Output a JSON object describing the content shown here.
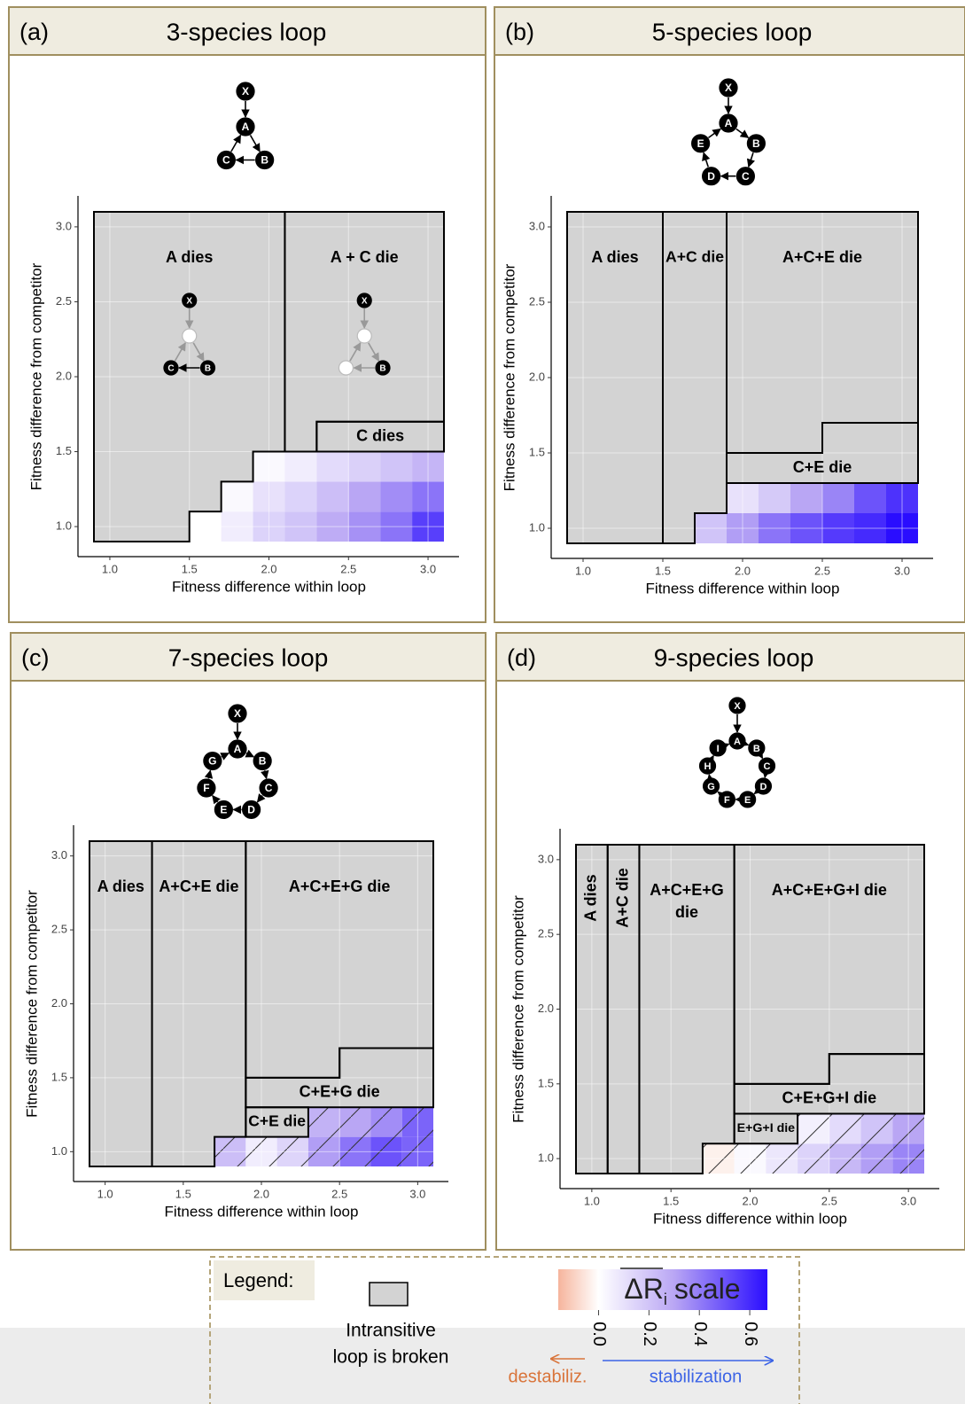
{
  "chart_data": [
    {
      "type": "heatmap",
      "panel_label": "(a)",
      "title": "3-species loop",
      "xlabel": "Fitness difference within loop",
      "ylabel": "Fitness difference from competitor",
      "network": {
        "competitor": "X",
        "loop": [
          "A",
          "B",
          "C"
        ]
      },
      "xlim": [
        0.9,
        3.1
      ],
      "ylim": [
        0.9,
        3.1
      ],
      "xticks": [
        {
          "value": 1,
          "label": "1.0"
        },
        1.5,
        {
          "value": 2,
          "label": "2.0"
        },
        2.5,
        {
          "value": 3,
          "label": "3.0"
        }
      ],
      "yticks": [
        {
          "value": 1,
          "label": "1.0"
        },
        1.5,
        {
          "value": 2,
          "label": "2.0"
        },
        2.5,
        {
          "value": 3,
          "label": "3.0"
        }
      ],
      "grid": true,
      "hatched": false,
      "cell_size": 0.2,
      "regions": [
        {
          "label": "A dies",
          "x": [
            0.9,
            1.5,
            1.5,
            1.7,
            1.7,
            1.9,
            1.9,
            2.1,
            2.1,
            0.9
          ],
          "y": [
            0.9,
            0.9,
            1.1,
            1.1,
            1.3,
            1.3,
            1.5,
            1.5,
            3.1,
            3.1
          ],
          "inset": [
            "X",
            "B",
            "C"
          ]
        },
        {
          "label": "A + C die",
          "x": [
            2.1,
            2.3,
            2.3,
            3.1,
            3.1,
            2.1
          ],
          "y": [
            1.5,
            1.5,
            1.7,
            1.7,
            3.1,
            3.1
          ],
          "inset": [
            "X",
            "B"
          ]
        },
        {
          "label": "C dies",
          "x": [
            2.3,
            3.1,
            3.1,
            2.3
          ],
          "y": [
            1.5,
            1.5,
            1.7,
            1.7
          ]
        }
      ],
      "cells": {
        "x": [
          1.6,
          1.8,
          2.0,
          2.2,
          2.4,
          2.6,
          2.8,
          3.0,
          1.8,
          2.0,
          2.2,
          2.4,
          2.6,
          2.8,
          3.0,
          2.0,
          2.2,
          2.4,
          2.6,
          2.8,
          3.0
        ],
        "y": [
          1.0,
          1.0,
          1.0,
          1.0,
          1.0,
          1.0,
          1.0,
          1.0,
          1.2,
          1.2,
          1.2,
          1.2,
          1.2,
          1.2,
          1.2,
          1.4,
          1.4,
          1.4,
          1.4,
          1.4,
          1.4
        ],
        "values": [
          0.0,
          0.06,
          0.15,
          0.2,
          0.28,
          0.35,
          0.42,
          0.55,
          0.02,
          0.1,
          0.15,
          0.22,
          0.3,
          0.36,
          0.42,
          0.02,
          0.06,
          0.12,
          0.16,
          0.2,
          0.25
        ]
      }
    },
    {
      "type": "heatmap",
      "panel_label": "(b)",
      "title": "5-species loop",
      "xlabel": "Fitness difference within loop",
      "ylabel": "Fitness difference from competitor",
      "network": {
        "competitor": "X",
        "loop": [
          "A",
          "B",
          "C",
          "D",
          "E"
        ]
      },
      "xlim": [
        0.9,
        3.1
      ],
      "ylim": [
        0.9,
        3.1
      ],
      "xticks": [
        {
          "value": 1,
          "label": "1.0"
        },
        1.5,
        {
          "value": 2,
          "label": "2.0"
        },
        2.5,
        {
          "value": 3,
          "label": "3.0"
        }
      ],
      "yticks": [
        {
          "value": 1,
          "label": "1.0"
        },
        1.5,
        {
          "value": 2,
          "label": "2.0"
        },
        2.5,
        {
          "value": 3,
          "label": "3.0"
        }
      ],
      "grid": true,
      "hatched": false,
      "cell_size": 0.2,
      "regions": [
        {
          "label": "A dies",
          "x": [
            0.9,
            1.5,
            1.5,
            0.9
          ],
          "y": [
            0.9,
            0.9,
            3.1,
            3.1
          ]
        },
        {
          "label": "A+C die",
          "x": [
            1.5,
            1.7,
            1.7,
            1.9,
            1.9,
            1.5
          ],
          "y": [
            0.9,
            0.9,
            1.1,
            1.1,
            3.1,
            3.1
          ]
        },
        {
          "label": "A+C+E die",
          "x": [
            1.9,
            2.5,
            2.5,
            3.1,
            3.1,
            1.9
          ],
          "y": [
            1.5,
            1.5,
            1.7,
            1.7,
            3.1,
            3.1
          ]
        },
        {
          "label": "C+E die",
          "x": [
            1.9,
            3.1,
            3.1,
            2.5,
            2.5,
            1.9
          ],
          "y": [
            1.3,
            1.3,
            1.7,
            1.7,
            1.5,
            1.5
          ]
        }
      ],
      "cells": {
        "x": [
          1.8,
          2.0,
          2.2,
          2.4,
          2.6,
          2.8,
          3.0,
          2.0,
          2.2,
          2.4,
          2.6,
          2.8,
          3.0
        ],
        "y": [
          1.0,
          1.0,
          1.0,
          1.0,
          1.0,
          1.0,
          1.0,
          1.2,
          1.2,
          1.2,
          1.2,
          1.2,
          1.2
        ],
        "values": [
          0.2,
          0.32,
          0.42,
          0.5,
          0.56,
          0.6,
          0.67,
          0.1,
          0.18,
          0.3,
          0.38,
          0.5,
          0.58
        ]
      }
    },
    {
      "type": "heatmap",
      "panel_label": "(c)",
      "title": "7-species loop",
      "xlabel": "Fitness difference within loop",
      "ylabel": "Fitness difference from competitor",
      "network": {
        "competitor": "X",
        "loop": [
          "A",
          "B",
          "C",
          "D",
          "E",
          "F",
          "G"
        ]
      },
      "xlim": [
        0.9,
        3.1
      ],
      "ylim": [
        0.9,
        3.1
      ],
      "xticks": [
        {
          "value": 1,
          "label": "1.0"
        },
        1.5,
        {
          "value": 2,
          "label": "2.0"
        },
        2.5,
        {
          "value": 3,
          "label": "3.0"
        }
      ],
      "yticks": [
        {
          "value": 1,
          "label": "1.0"
        },
        1.5,
        {
          "value": 2,
          "label": "2.0"
        },
        2.5,
        {
          "value": 3,
          "label": "3.0"
        }
      ],
      "grid": true,
      "hatched": true,
      "cell_size": 0.2,
      "regions": [
        {
          "label": "A dies",
          "x": [
            0.9,
            1.3,
            1.3,
            0.9
          ],
          "y": [
            0.9,
            0.9,
            3.1,
            3.1
          ]
        },
        {
          "label": "A+C+E die",
          "x": [
            1.3,
            1.7,
            1.7,
            1.9,
            1.9,
            1.3
          ],
          "y": [
            0.9,
            0.9,
            1.1,
            1.1,
            3.1,
            3.1
          ]
        },
        {
          "label": "A+C+E+G die",
          "x": [
            1.9,
            2.5,
            2.5,
            3.1,
            3.1,
            1.9
          ],
          "y": [
            1.5,
            1.5,
            1.7,
            1.7,
            3.1,
            3.1
          ]
        },
        {
          "label": "C+E+G die",
          "x": [
            1.9,
            3.1,
            3.1,
            2.5,
            2.5,
            1.9
          ],
          "y": [
            1.3,
            1.3,
            1.7,
            1.7,
            1.5,
            1.5
          ]
        },
        {
          "label": "C+E die",
          "x": [
            1.9,
            2.3,
            2.3,
            1.9
          ],
          "y": [
            1.1,
            1.1,
            1.3,
            1.3
          ]
        }
      ],
      "cells": {
        "x": [
          1.8,
          2.0,
          2.2,
          2.4,
          2.6,
          2.8,
          3.0,
          2.4,
          2.6,
          2.8,
          3.0
        ],
        "y": [
          1.0,
          1.0,
          1.0,
          1.0,
          1.0,
          1.0,
          1.0,
          1.2,
          1.2,
          1.2,
          1.2
        ],
        "values": [
          0.22,
          0.06,
          0.14,
          0.32,
          0.42,
          0.5,
          0.46,
          0.26,
          0.3,
          0.36,
          0.46
        ]
      }
    },
    {
      "type": "heatmap",
      "panel_label": "(d)",
      "title": "9-species loop",
      "xlabel": "Fitness difference within loop",
      "ylabel": "Fitness difference from competitor",
      "network": {
        "competitor": "X",
        "loop": [
          "A",
          "B",
          "C",
          "D",
          "E",
          "F",
          "G",
          "H",
          "I"
        ]
      },
      "xlim": [
        0.9,
        3.1
      ],
      "ylim": [
        0.9,
        3.1
      ],
      "xticks": [
        {
          "value": 1,
          "label": "1.0"
        },
        1.5,
        {
          "value": 2,
          "label": "2.0"
        },
        2.5,
        {
          "value": 3,
          "label": "3.0"
        }
      ],
      "yticks": [
        {
          "value": 1,
          "label": "1.0"
        },
        1.5,
        {
          "value": 2,
          "label": "2.0"
        },
        2.5,
        {
          "value": 3,
          "label": "3.0"
        }
      ],
      "grid": true,
      "hatched": true,
      "cell_size": 0.2,
      "regions": [
        {
          "label": "A dies",
          "vertical": true,
          "x": [
            0.9,
            1.1,
            1.1,
            0.9
          ],
          "y": [
            0.9,
            0.9,
            3.1,
            3.1
          ]
        },
        {
          "label": "A+C die",
          "vertical": true,
          "x": [
            1.1,
            1.3,
            1.3,
            1.1
          ],
          "y": [
            0.9,
            0.9,
            3.1,
            3.1
          ]
        },
        {
          "label_lines": [
            "A+C+E+G",
            "die"
          ],
          "x": [
            1.3,
            1.7,
            1.7,
            1.9,
            1.9,
            1.3
          ],
          "y": [
            0.9,
            0.9,
            1.1,
            1.1,
            3.1,
            3.1
          ]
        },
        {
          "label": "A+C+E+G+I die",
          "x": [
            1.9,
            2.5,
            2.5,
            3.1,
            3.1,
            1.9
          ],
          "y": [
            1.5,
            1.5,
            1.7,
            1.7,
            3.1,
            3.1
          ]
        },
        {
          "label": "C+E+G+I die",
          "x": [
            1.9,
            3.1,
            3.1,
            2.5,
            2.5,
            1.9
          ],
          "y": [
            1.3,
            1.3,
            1.7,
            1.7,
            1.5,
            1.5
          ]
        },
        {
          "label": "E+G+I die",
          "x": [
            1.9,
            2.3,
            2.3,
            1.9
          ],
          "y": [
            1.1,
            1.1,
            1.3,
            1.3
          ]
        }
      ],
      "cells": {
        "x": [
          1.8,
          2.0,
          2.2,
          2.4,
          2.6,
          2.8,
          3.0,
          2.4,
          2.6,
          2.8,
          3.0
        ],
        "y": [
          1.0,
          1.0,
          1.0,
          1.0,
          1.0,
          1.0,
          1.0,
          1.2,
          1.2,
          1.2,
          1.2
        ],
        "values": [
          -0.03,
          0.02,
          0.08,
          0.15,
          0.24,
          0.32,
          0.38,
          0.05,
          0.12,
          0.2,
          0.3
        ]
      }
    }
  ],
  "colormap": [
    {
      "value": -0.16,
      "color": "#f6b49c"
    },
    {
      "value": 0,
      "color": "#ffffff"
    },
    {
      "value": 0.3,
      "color": "#b9a6f4"
    },
    {
      "value": 0.67,
      "color": "#2a0dff"
    }
  ],
  "legend": {
    "title": "Legend:",
    "broken_lines": [
      "Intransitive",
      "loop is broken"
    ],
    "scale_symbol": "ΔR",
    "scale_subscript": "i",
    "scale_word": "scale",
    "clim": [
      -0.16,
      0.67
    ],
    "scale_ticks": [
      {
        "value": 0,
        "label": "0.0"
      },
      0.2,
      0.4,
      0.6
    ],
    "left_arrow": "destabiliz.",
    "right_arrow": "stabilization"
  }
}
